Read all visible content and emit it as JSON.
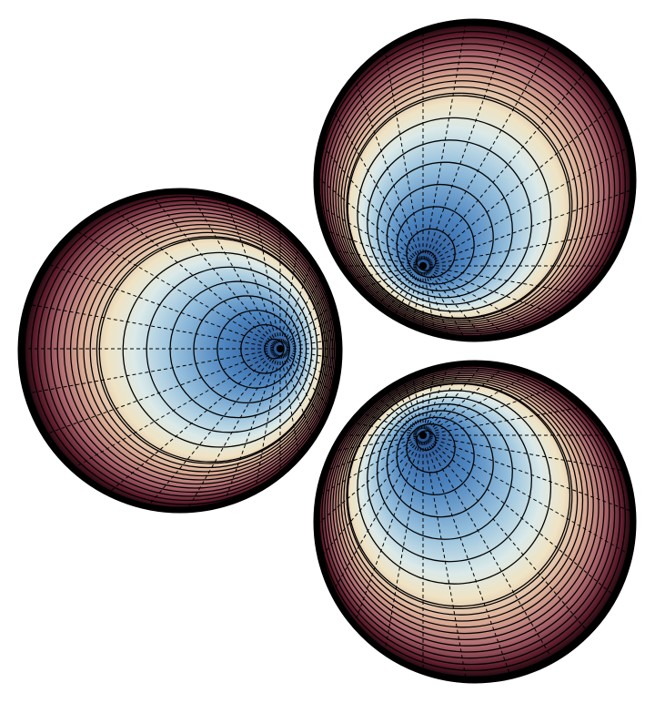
{
  "figure": {
    "sphere_count": 3,
    "colormap": [
      "#24508f",
      "#4f86bf",
      "#9cc4de",
      "#dbe9e8",
      "#efe3c4",
      "#d9aa94",
      "#a8626a",
      "#5a1a2a",
      "#000000"
    ],
    "contour_color": "#000000",
    "meridian_style": "dashed",
    "background": "#ffffff"
  }
}
